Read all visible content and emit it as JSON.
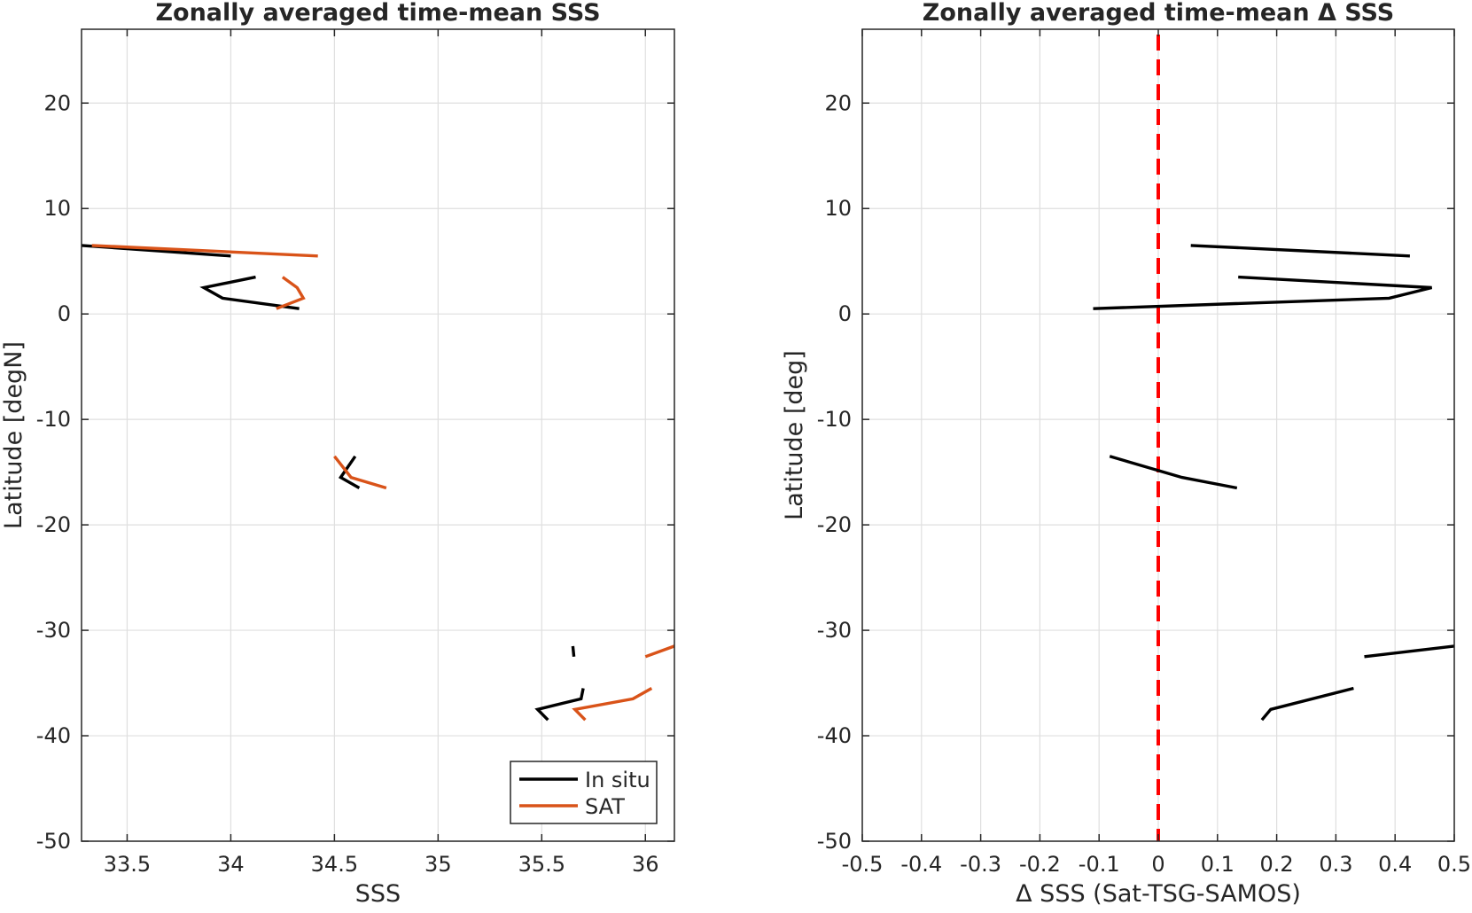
{
  "chart_data": [
    {
      "type": "line",
      "title": "Zonally averaged time-mean SSS",
      "xlabel": "SSS",
      "ylabel": "Latitude [degN]",
      "xlim": [
        33.28,
        36.14
      ],
      "ylim": [
        -50,
        27
      ],
      "xticks": [
        33.5,
        34,
        34.5,
        35,
        35.5,
        36
      ],
      "xtick_labels": [
        "33.5",
        "34",
        "34.5",
        "35",
        "35.5",
        "36"
      ],
      "yticks": [
        -50,
        -40,
        -30,
        -20,
        -10,
        0,
        10,
        20
      ],
      "ytick_labels": [
        "-50",
        "-40",
        "-30",
        "-20",
        "-10",
        "0",
        "10",
        "20"
      ],
      "grid": true,
      "legend": {
        "location": "bottom-right",
        "entries": [
          "In situ",
          "SAT"
        ]
      },
      "series": [
        {
          "name": "In situ",
          "color": "#000000",
          "segments": [
            [
              [
                33.28,
                6.5
              ],
              [
                34.0,
                5.5
              ]
            ],
            [
              [
                34.12,
                3.5
              ],
              [
                33.87,
                2.5
              ],
              [
                33.96,
                1.5
              ],
              [
                34.33,
                0.5
              ]
            ],
            [
              [
                34.6,
                -13.5
              ],
              [
                34.53,
                -15.5
              ],
              [
                34.62,
                -16.5
              ]
            ],
            [
              [
                35.65,
                -31.5
              ],
              [
                35.655,
                -32.5
              ]
            ],
            [
              [
                35.7,
                -35.5
              ],
              [
                35.69,
                -36.5
              ],
              [
                35.48,
                -37.5
              ],
              [
                35.53,
                -38.5
              ]
            ]
          ]
        },
        {
          "name": "SAT",
          "color": "#D95319",
          "segments": [
            [
              [
                33.33,
                6.5
              ],
              [
                34.42,
                5.5
              ]
            ],
            [
              [
                34.25,
                3.5
              ],
              [
                34.32,
                2.5
              ],
              [
                34.35,
                1.5
              ],
              [
                34.22,
                0.5
              ]
            ],
            [
              [
                34.5,
                -13.5
              ],
              [
                34.58,
                -15.5
              ],
              [
                34.75,
                -16.5
              ]
            ],
            [
              [
                36.0,
                -32.5
              ],
              [
                36.14,
                -31.5
              ]
            ],
            [
              [
                36.03,
                -35.5
              ],
              [
                35.94,
                -36.5
              ],
              [
                35.66,
                -37.5
              ],
              [
                35.71,
                -38.5
              ]
            ]
          ]
        }
      ]
    },
    {
      "type": "line",
      "title": "Zonally averaged time-mean Δ SSS",
      "xlabel": "Δ SSS (Sat-TSG-SAMOS)",
      "ylabel": "Latitude [deg]",
      "xlim": [
        -0.5,
        0.5
      ],
      "ylim": [
        -50,
        27
      ],
      "xticks": [
        -0.5,
        -0.4,
        -0.3,
        -0.2,
        -0.1,
        0,
        0.1,
        0.2,
        0.3,
        0.4,
        0.5
      ],
      "xtick_labels": [
        "-0.5",
        "-0.4",
        "-0.3",
        "-0.2",
        "-0.1",
        "0",
        "0.1",
        "0.2",
        "0.3",
        "0.4",
        "0.5"
      ],
      "yticks": [
        -50,
        -40,
        -30,
        -20,
        -10,
        0,
        10,
        20
      ],
      "ytick_labels": [
        "-50",
        "-40",
        "-30",
        "-20",
        "-10",
        "0",
        "10",
        "20"
      ],
      "grid": true,
      "reference_line": {
        "x": 0,
        "color": "#FF0000",
        "style": "dashed"
      },
      "series": [
        {
          "color": "#000000",
          "segments": [
            [
              [
                0.055,
                6.5
              ],
              [
                0.425,
                5.5
              ]
            ],
            [
              [
                0.135,
                3.5
              ],
              [
                0.462,
                2.5
              ],
              [
                0.39,
                1.5
              ],
              [
                -0.11,
                0.5
              ]
            ],
            [
              [
                -0.082,
                -13.5
              ],
              [
                0.04,
                -15.5
              ],
              [
                0.133,
                -16.5
              ]
            ],
            [
              [
                0.348,
                -32.5
              ],
              [
                0.5,
                -31.5
              ]
            ],
            [
              [
                0.33,
                -35.5
              ],
              [
                0.19,
                -37.5
              ],
              [
                0.175,
                -38.5
              ]
            ]
          ]
        }
      ]
    }
  ]
}
